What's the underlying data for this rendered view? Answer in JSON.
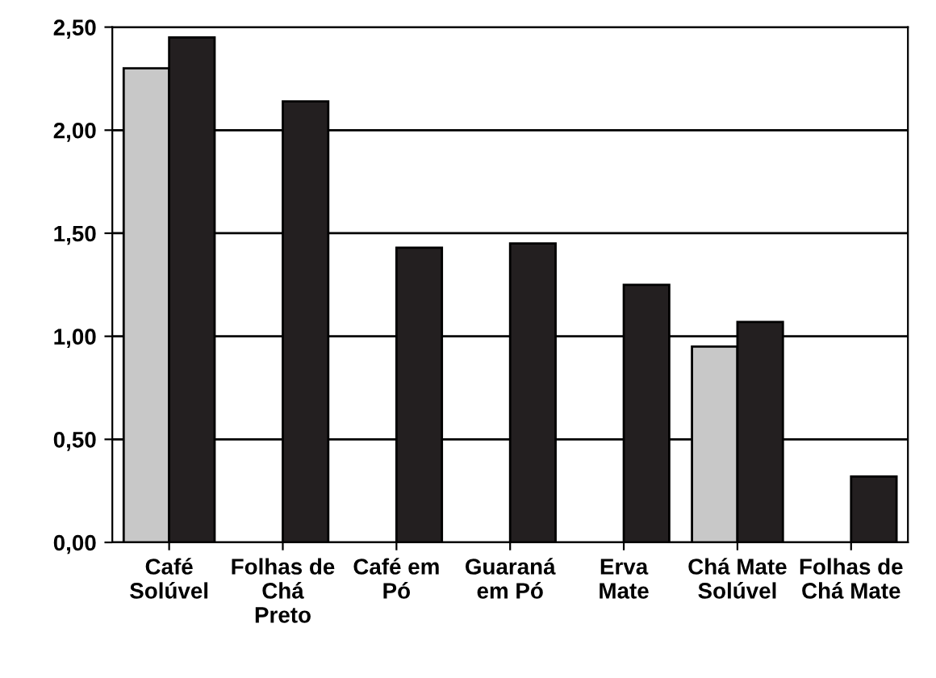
{
  "chart_data": {
    "type": "bar",
    "categories": [
      "Café\nSolúvel",
      "Folhas de\nChá\nPreto",
      "Café em\nPó",
      "Guaraná\nem Pó",
      "Erva\nMate",
      "Chá Mate\nSolúvel",
      "Folhas de\nChá Mate"
    ],
    "series": [
      {
        "color": "#c8c8c8",
        "values": [
          2.3,
          null,
          null,
          null,
          null,
          0.95,
          null
        ]
      },
      {
        "color": "#231f20",
        "values": [
          2.45,
          2.14,
          1.43,
          1.45,
          1.25,
          1.07,
          0.32
        ]
      }
    ],
    "ylim": [
      0,
      2.5
    ],
    "yticks": [
      {
        "value": 0,
        "label": "0,00"
      },
      {
        "value": 0.5,
        "label": "0,50"
      },
      {
        "value": 1,
        "label": "1,00"
      },
      {
        "value": 1.5,
        "label": "1,50"
      },
      {
        "value": 2,
        "label": "2,00"
      },
      {
        "value": 2.5,
        "label": "2,50"
      }
    ],
    "grid": "y"
  }
}
